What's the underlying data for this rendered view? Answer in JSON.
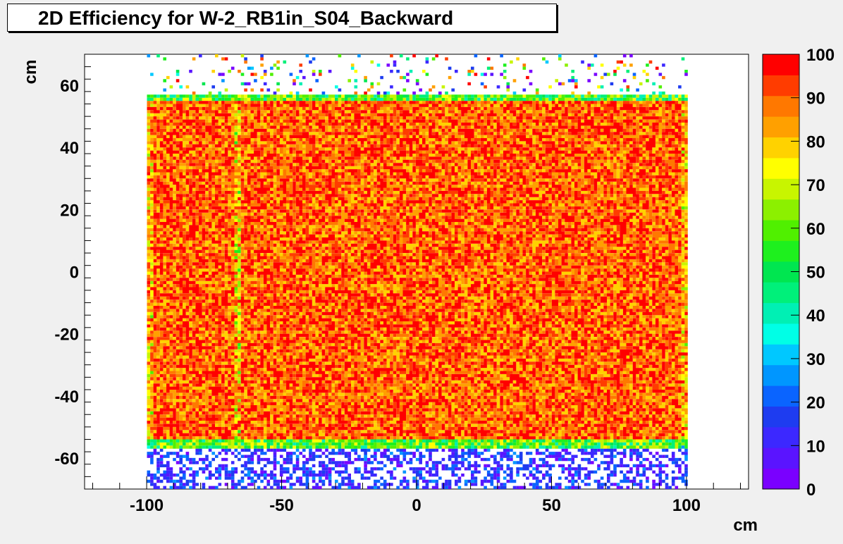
{
  "title": "2D Efficiency for W-2_RB1in_S04_Backward",
  "chart_data": {
    "type": "heatmap",
    "title": "2D Efficiency for W-2_RB1in_S04_Backward",
    "xlabel": "cm",
    "ylabel": "cm",
    "xlim": [
      -123,
      123
    ],
    "ylim": [
      -70,
      70
    ],
    "x_ticks": [
      -100,
      -50,
      0,
      50,
      100
    ],
    "y_ticks": [
      60,
      40,
      20,
      0,
      -20,
      -40,
      -60
    ],
    "z_range": [
      0,
      100
    ],
    "colorbar_ticks": [
      100,
      90,
      80,
      70,
      60,
      50,
      40,
      30,
      20,
      10,
      0
    ],
    "colorbar_colors": [
      "#7a00ff",
      "#5a14ff",
      "#3c28ff",
      "#1e3cf0",
      "#0a64ff",
      "#0096ff",
      "#00c8ff",
      "#00ffe6",
      "#00f0b4",
      "#00f07a",
      "#00e650",
      "#1ef01e",
      "#50f000",
      "#8cf000",
      "#c8f500",
      "#ffff00",
      "#ffd200",
      "#ffa000",
      "#ff7800",
      "#ff3c00",
      "#ff0000"
    ],
    "active_region": {
      "x": [
        -100,
        100
      ],
      "y": [
        -57,
        57
      ],
      "typical_efficiency": 92
    },
    "low_region": {
      "x": [
        -100,
        100
      ],
      "y": [
        -70,
        -57
      ],
      "typical_efficiency": 10
    },
    "sparse_top_region": {
      "x": [
        -100,
        100
      ],
      "y": [
        57,
        70
      ],
      "typical_efficiency": 50
    },
    "inefficient_strip_x": -67
  }
}
